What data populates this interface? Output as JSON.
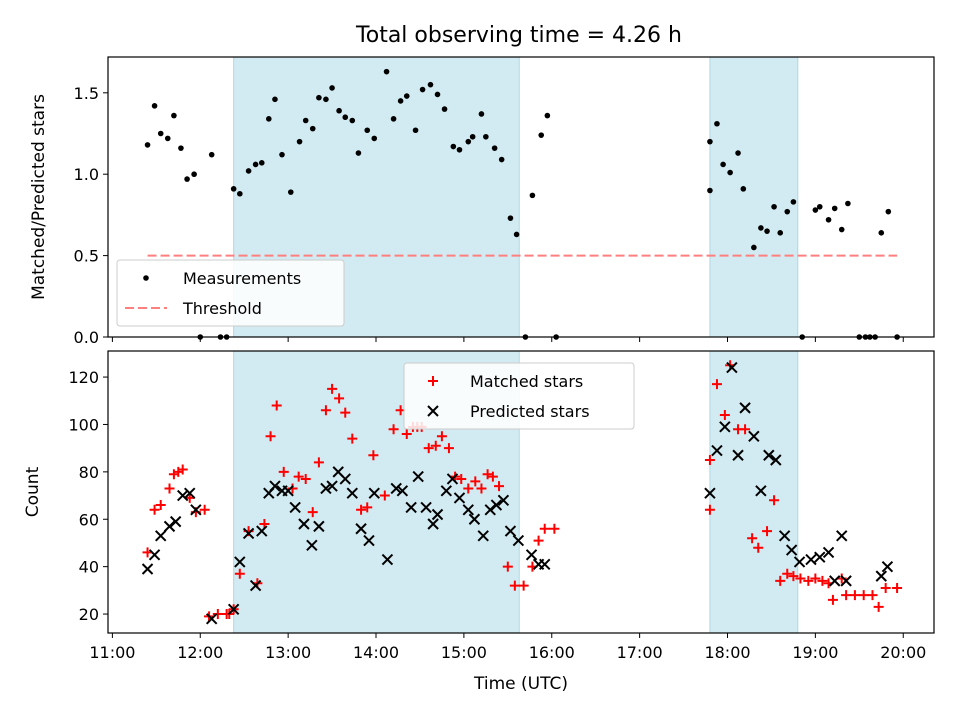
{
  "title": "Total observing time = 4.26 h",
  "chart_data": [
    {
      "type": "scatter",
      "ylabel": "Matched/Predicted stars",
      "ylim": [
        0,
        1.72
      ],
      "xlim": [
        10.95,
        20.35
      ],
      "yticks": [
        0.0,
        0.5,
        1.0,
        1.5
      ],
      "ytick_labels": [
        "0.0",
        "0.5",
        "1.0",
        "1.5"
      ],
      "shaded_intervals": [
        [
          12.38,
          15.63
        ],
        [
          17.8,
          18.8
        ]
      ],
      "shade_color": "#add8e6",
      "legend": {
        "placement": "lower left",
        "entries": [
          "Measurements",
          "Threshold"
        ]
      },
      "threshold": {
        "name": "Threshold",
        "y": 0.5,
        "x_range": [
          11.4,
          19.93
        ],
        "color": "#ff7f7f"
      },
      "series": [
        {
          "name": "Measurements",
          "color": "#000000",
          "marker": "dot",
          "points": [
            [
              11.4,
              1.18
            ],
            [
              11.48,
              1.42
            ],
            [
              11.55,
              1.25
            ],
            [
              11.63,
              1.22
            ],
            [
              11.7,
              1.36
            ],
            [
              11.78,
              1.16
            ],
            [
              11.85,
              0.97
            ],
            [
              11.93,
              1.0
            ],
            [
              12.0,
              0.0
            ],
            [
              12.13,
              1.12
            ],
            [
              12.23,
              0.0
            ],
            [
              12.3,
              0.0
            ],
            [
              12.38,
              0.91
            ],
            [
              12.45,
              0.88
            ],
            [
              12.55,
              1.02
            ],
            [
              12.63,
              1.06
            ],
            [
              12.7,
              1.07
            ],
            [
              12.78,
              1.34
            ],
            [
              12.85,
              1.46
            ],
            [
              12.93,
              1.12
            ],
            [
              13.03,
              0.89
            ],
            [
              13.13,
              1.2
            ],
            [
              13.2,
              1.33
            ],
            [
              13.28,
              1.28
            ],
            [
              13.35,
              1.47
            ],
            [
              13.43,
              1.46
            ],
            [
              13.5,
              1.53
            ],
            [
              13.58,
              1.39
            ],
            [
              13.65,
              1.35
            ],
            [
              13.73,
              1.33
            ],
            [
              13.8,
              1.13
            ],
            [
              13.9,
              1.27
            ],
            [
              13.98,
              1.22
            ],
            [
              14.12,
              1.63
            ],
            [
              14.2,
              1.34
            ],
            [
              14.28,
              1.45
            ],
            [
              14.35,
              1.48
            ],
            [
              14.45,
              1.27
            ],
            [
              14.53,
              1.52
            ],
            [
              14.62,
              1.55
            ],
            [
              14.7,
              1.49
            ],
            [
              14.78,
              1.4
            ],
            [
              14.88,
              1.17
            ],
            [
              14.95,
              1.15
            ],
            [
              15.05,
              1.2
            ],
            [
              15.1,
              1.23
            ],
            [
              15.2,
              1.37
            ],
            [
              15.25,
              1.23
            ],
            [
              15.35,
              1.16
            ],
            [
              15.43,
              1.09
            ],
            [
              15.53,
              0.73
            ],
            [
              15.6,
              0.63
            ],
            [
              15.7,
              0.0
            ],
            [
              15.78,
              0.87
            ],
            [
              15.88,
              1.24
            ],
            [
              15.95,
              1.36
            ],
            [
              16.05,
              0.0
            ],
            [
              17.8,
              0.9
            ],
            [
              17.8,
              1.2
            ],
            [
              17.88,
              1.31
            ],
            [
              17.95,
              1.06
            ],
            [
              18.03,
              1.01
            ],
            [
              18.12,
              1.13
            ],
            [
              18.18,
              0.91
            ],
            [
              18.3,
              0.55
            ],
            [
              18.38,
              0.67
            ],
            [
              18.45,
              0.65
            ],
            [
              18.53,
              0.8
            ],
            [
              18.6,
              0.64
            ],
            [
              18.68,
              0.77
            ],
            [
              18.75,
              0.83
            ],
            [
              18.85,
              0.0
            ],
            [
              19.0,
              0.78
            ],
            [
              19.05,
              0.8
            ],
            [
              19.15,
              0.72
            ],
            [
              19.22,
              0.79
            ],
            [
              19.3,
              0.66
            ],
            [
              19.37,
              0.82
            ],
            [
              19.5,
              0.0
            ],
            [
              19.57,
              0.0
            ],
            [
              19.62,
              0.0
            ],
            [
              19.68,
              0.0
            ],
            [
              19.75,
              0.64
            ],
            [
              19.83,
              0.77
            ],
            [
              19.93,
              0.0
            ]
          ]
        }
      ]
    },
    {
      "type": "scatter",
      "xlabel": "Time (UTC)",
      "ylabel": "Count",
      "ylim": [
        12,
        131
      ],
      "xlim": [
        10.95,
        20.35
      ],
      "yticks": [
        20,
        40,
        60,
        80,
        100,
        120
      ],
      "ytick_labels": [
        "20",
        "40",
        "60",
        "80",
        "100",
        "120"
      ],
      "xticks": [
        11,
        12,
        13,
        14,
        15,
        16,
        17,
        18,
        19,
        20
      ],
      "xtick_labels": [
        "11:00",
        "12:00",
        "13:00",
        "14:00",
        "15:00",
        "16:00",
        "17:00",
        "18:00",
        "19:00",
        "20:00"
      ],
      "shaded_intervals": [
        [
          12.38,
          15.63
        ],
        [
          17.8,
          18.8
        ]
      ],
      "shade_color": "#add8e6",
      "legend": {
        "placement": "upper center",
        "entries": [
          "Matched stars",
          "Predicted stars"
        ]
      },
      "series": [
        {
          "name": "Matched stars",
          "color": "#ff0000",
          "marker": "plus",
          "points": [
            [
              11.4,
              46
            ],
            [
              11.48,
              64
            ],
            [
              11.55,
              66
            ],
            [
              11.65,
              73
            ],
            [
              11.7,
              79
            ],
            [
              11.75,
              80
            ],
            [
              11.8,
              81
            ],
            [
              11.88,
              69
            ],
            [
              11.95,
              63
            ],
            [
              12.05,
              64
            ],
            [
              12.1,
              19
            ],
            [
              12.2,
              20
            ],
            [
              12.3,
              20
            ],
            [
              12.33,
              20
            ],
            [
              12.38,
              22
            ],
            [
              12.45,
              37
            ],
            [
              12.55,
              55
            ],
            [
              12.65,
              33
            ],
            [
              12.73,
              58
            ],
            [
              12.8,
              95
            ],
            [
              12.87,
              108
            ],
            [
              12.95,
              80
            ],
            [
              13.05,
              73
            ],
            [
              13.12,
              78
            ],
            [
              13.2,
              77
            ],
            [
              13.28,
              63
            ],
            [
              13.35,
              84
            ],
            [
              13.43,
              106
            ],
            [
              13.5,
              115
            ],
            [
              13.58,
              111
            ],
            [
              13.65,
              105
            ],
            [
              13.73,
              94
            ],
            [
              13.83,
              64
            ],
            [
              13.9,
              65
            ],
            [
              13.97,
              87
            ],
            [
              14.1,
              70
            ],
            [
              14.2,
              98
            ],
            [
              14.28,
              106
            ],
            [
              14.35,
              96
            ],
            [
              14.42,
              99
            ],
            [
              14.47,
              99
            ],
            [
              14.52,
              99
            ],
            [
              14.6,
              90
            ],
            [
              14.68,
              91
            ],
            [
              14.75,
              95
            ],
            [
              14.83,
              90
            ],
            [
              14.9,
              78
            ],
            [
              14.97,
              77
            ],
            [
              15.05,
              73
            ],
            [
              15.13,
              76
            ],
            [
              15.2,
              73
            ],
            [
              15.27,
              79
            ],
            [
              15.33,
              78
            ],
            [
              15.4,
              74
            ],
            [
              15.5,
              40
            ],
            [
              15.58,
              32
            ],
            [
              15.68,
              32
            ],
            [
              15.78,
              40
            ],
            [
              15.85,
              51
            ],
            [
              15.92,
              56
            ],
            [
              16.03,
              56
            ],
            [
              17.8,
              64
            ],
            [
              17.8,
              85
            ],
            [
              17.88,
              117
            ],
            [
              17.97,
              104
            ],
            [
              18.03,
              125
            ],
            [
              18.12,
              98
            ],
            [
              18.2,
              98
            ],
            [
              18.28,
              52
            ],
            [
              18.35,
              48
            ],
            [
              18.45,
              55
            ],
            [
              18.53,
              68
            ],
            [
              18.6,
              34
            ],
            [
              18.68,
              37
            ],
            [
              18.75,
              36
            ],
            [
              18.83,
              35
            ],
            [
              18.92,
              34
            ],
            [
              19.0,
              35
            ],
            [
              19.08,
              34
            ],
            [
              19.15,
              33
            ],
            [
              19.2,
              26
            ],
            [
              19.3,
              35
            ],
            [
              19.35,
              28
            ],
            [
              19.45,
              28
            ],
            [
              19.55,
              28
            ],
            [
              19.65,
              28
            ],
            [
              19.72,
              23
            ],
            [
              19.8,
              31
            ],
            [
              19.93,
              31
            ]
          ]
        },
        {
          "name": "Predicted stars",
          "color": "#000000",
          "marker": "x",
          "points": [
            [
              11.4,
              39
            ],
            [
              11.48,
              45
            ],
            [
              11.55,
              53
            ],
            [
              11.65,
              57
            ],
            [
              11.72,
              59
            ],
            [
              11.8,
              70
            ],
            [
              11.88,
              71
            ],
            [
              11.95,
              64
            ],
            [
              12.13,
              18
            ],
            [
              12.38,
              22
            ],
            [
              12.45,
              42
            ],
            [
              12.55,
              54
            ],
            [
              12.63,
              32
            ],
            [
              12.7,
              55
            ],
            [
              12.78,
              71
            ],
            [
              12.85,
              74
            ],
            [
              12.93,
              72
            ],
            [
              13.0,
              72
            ],
            [
              13.08,
              65
            ],
            [
              13.18,
              58
            ],
            [
              13.27,
              49
            ],
            [
              13.35,
              57
            ],
            [
              13.43,
              73
            ],
            [
              13.5,
              74
            ],
            [
              13.57,
              80
            ],
            [
              13.65,
              77
            ],
            [
              13.73,
              71
            ],
            [
              13.83,
              56
            ],
            [
              13.92,
              51
            ],
            [
              13.98,
              71
            ],
            [
              14.13,
              43
            ],
            [
              14.23,
              73
            ],
            [
              14.3,
              72
            ],
            [
              14.4,
              65
            ],
            [
              14.48,
              78
            ],
            [
              14.57,
              65
            ],
            [
              14.65,
              58
            ],
            [
              14.7,
              62
            ],
            [
              14.8,
              72
            ],
            [
              14.87,
              77
            ],
            [
              14.95,
              69
            ],
            [
              15.05,
              64
            ],
            [
              15.12,
              60
            ],
            [
              15.22,
              53
            ],
            [
              15.3,
              64
            ],
            [
              15.37,
              66
            ],
            [
              15.45,
              68
            ],
            [
              15.53,
              55
            ],
            [
              15.62,
              51
            ],
            [
              15.77,
              45
            ],
            [
              15.85,
              41
            ],
            [
              15.92,
              41
            ],
            [
              17.8,
              71
            ],
            [
              17.88,
              89
            ],
            [
              17.97,
              99
            ],
            [
              18.05,
              124
            ],
            [
              18.12,
              87
            ],
            [
              18.2,
              107
            ],
            [
              18.3,
              95
            ],
            [
              18.38,
              72
            ],
            [
              18.47,
              87
            ],
            [
              18.55,
              85
            ],
            [
              18.65,
              53
            ],
            [
              18.73,
              47
            ],
            [
              18.82,
              42
            ],
            [
              18.95,
              43
            ],
            [
              19.05,
              44
            ],
            [
              19.15,
              46
            ],
            [
              19.22,
              34
            ],
            [
              19.3,
              53
            ],
            [
              19.35,
              34
            ],
            [
              19.75,
              36
            ],
            [
              19.82,
              40
            ]
          ]
        }
      ]
    }
  ]
}
